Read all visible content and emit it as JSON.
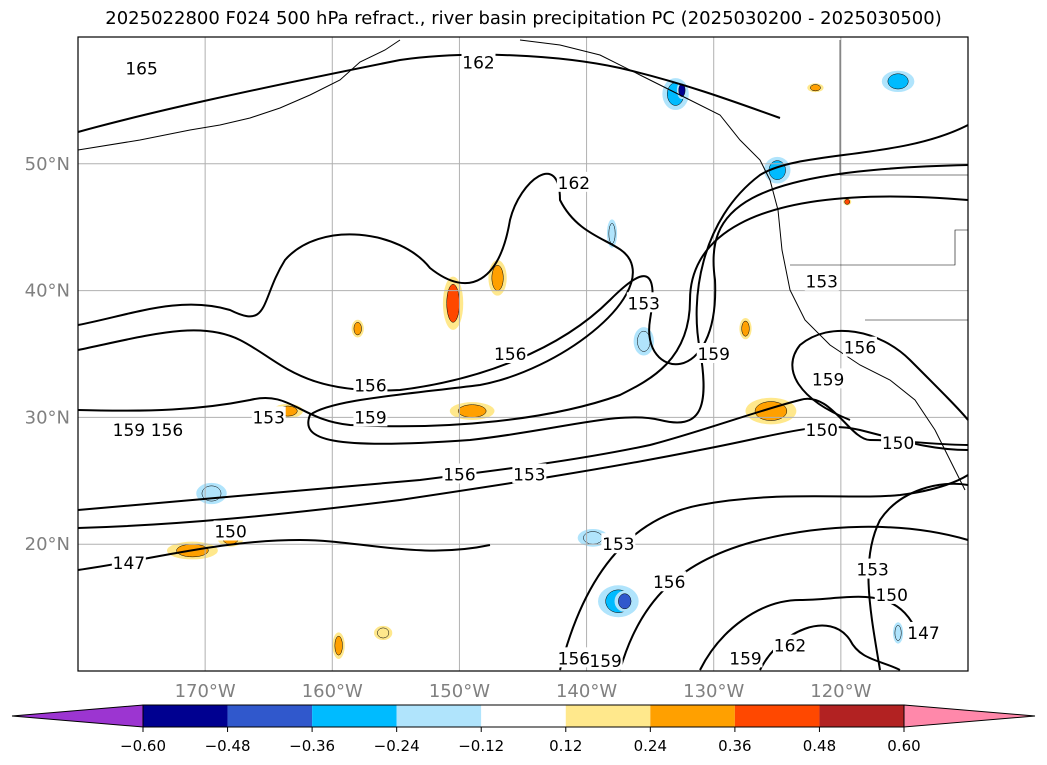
{
  "title": "2025022800 F024 500 hPa refract., river basin precipitation PC (2025030200 - 2025030500)",
  "map": {
    "lon_range": [
      -180,
      -110
    ],
    "lat_range": [
      10,
      60
    ],
    "lon_ticks": [
      {
        "value": -170,
        "label": "170°W"
      },
      {
        "value": -160,
        "label": "160°W"
      },
      {
        "value": -150,
        "label": "150°W"
      },
      {
        "value": -140,
        "label": "140°W"
      },
      {
        "value": -130,
        "label": "130°W"
      },
      {
        "value": -120,
        "label": "120°W"
      }
    ],
    "lat_ticks": [
      {
        "value": 20,
        "label": "20°N"
      },
      {
        "value": 30,
        "label": "30°N"
      },
      {
        "value": 40,
        "label": "40°N"
      },
      {
        "value": 50,
        "label": "50°N"
      }
    ],
    "grid": true,
    "tick_color": "#808080",
    "contour_labels": [
      {
        "text": "165",
        "lon": -175.0,
        "lat": 57.5
      },
      {
        "text": "162",
        "lon": -148.5,
        "lat": 58.0
      },
      {
        "text": "162",
        "lon": -141.0,
        "lat": 48.5
      },
      {
        "text": "156",
        "lon": -146.0,
        "lat": 35.0
      },
      {
        "text": "156",
        "lon": -157.0,
        "lat": 32.5
      },
      {
        "text": "159",
        "lon": -157.0,
        "lat": 30.0
      },
      {
        "text": "153",
        "lon": -165.0,
        "lat": 30.0
      },
      {
        "text": "156",
        "lon": -173.0,
        "lat": 29.0
      },
      {
        "text": "159",
        "lon": -176.0,
        "lat": 29.0
      },
      {
        "text": "156",
        "lon": -150.0,
        "lat": 25.5
      },
      {
        "text": "153",
        "lon": -144.5,
        "lat": 25.5
      },
      {
        "text": "150",
        "lon": -168.0,
        "lat": 21.0
      },
      {
        "text": "147",
        "lon": -176.0,
        "lat": 18.5
      },
      {
        "text": "153",
        "lon": -135.5,
        "lat": 39.0
      },
      {
        "text": "159",
        "lon": -130.0,
        "lat": 35.0
      },
      {
        "text": "153",
        "lon": -121.5,
        "lat": 40.7
      },
      {
        "text": "156",
        "lon": -118.5,
        "lat": 35.5
      },
      {
        "text": "159",
        "lon": -121.0,
        "lat": 33.0
      },
      {
        "text": "150",
        "lon": -121.5,
        "lat": 29.0
      },
      {
        "text": "150",
        "lon": -115.5,
        "lat": 28.0
      },
      {
        "text": "153",
        "lon": -137.5,
        "lat": 20.0
      },
      {
        "text": "156",
        "lon": -133.5,
        "lat": 17.0
      },
      {
        "text": "153",
        "lon": -117.5,
        "lat": 18.0
      },
      {
        "text": "150",
        "lon": -116.0,
        "lat": 16.0
      },
      {
        "text": "147",
        "lon": -113.5,
        "lat": 13.0
      },
      {
        "text": "162",
        "lon": -124.0,
        "lat": 12.0
      },
      {
        "text": "159",
        "lon": -127.5,
        "lat": 11.0
      },
      {
        "text": "159",
        "lon": -138.5,
        "lat": 10.8
      },
      {
        "text": "156",
        "lon": -141.0,
        "lat": 11.0
      }
    ],
    "shading": [
      {
        "lon": -150.5,
        "lat": 39.0,
        "w": 1.0,
        "h": 3.0,
        "level": "0.36"
      },
      {
        "lon": -149.0,
        "lat": 30.5,
        "w": 2.2,
        "h": 1.0,
        "level": "0.24"
      },
      {
        "lon": -147.0,
        "lat": 41.0,
        "w": 0.9,
        "h": 2.0,
        "level": "0.24"
      },
      {
        "lon": -125.5,
        "lat": 30.5,
        "w": 2.5,
        "h": 1.5,
        "level": "0.24"
      },
      {
        "lon": -127.5,
        "lat": 37.0,
        "w": 0.6,
        "h": 1.2,
        "level": "0.24"
      },
      {
        "lon": -163.5,
        "lat": 30.5,
        "w": 1.5,
        "h": 0.8,
        "level": "0.24"
      },
      {
        "lon": -171.0,
        "lat": 19.5,
        "w": 2.5,
        "h": 1.0,
        "level": "0.24"
      },
      {
        "lon": -168.0,
        "lat": 20.5,
        "w": 1.3,
        "h": 1.0,
        "level": "0.24"
      },
      {
        "lon": -176.5,
        "lat": 29.0,
        "w": 0.8,
        "h": 0.8,
        "level": "0.24"
      },
      {
        "lon": -159.5,
        "lat": 12.0,
        "w": 0.6,
        "h": 1.5,
        "level": "0.24"
      },
      {
        "lon": -156.0,
        "lat": 13.0,
        "w": 0.9,
        "h": 0.8,
        "level": "0.12"
      },
      {
        "lon": -158.0,
        "lat": 37.0,
        "w": 0.6,
        "h": 1.0,
        "level": "0.24"
      },
      {
        "lon": -133.0,
        "lat": 55.5,
        "w": 1.3,
        "h": 1.8,
        "level": "-0.36"
      },
      {
        "lon": -132.5,
        "lat": 55.8,
        "w": 0.5,
        "h": 1.0,
        "level": "-0.60"
      },
      {
        "lon": -115.5,
        "lat": 56.5,
        "w": 1.6,
        "h": 1.2,
        "level": "-0.36"
      },
      {
        "lon": -125.0,
        "lat": 49.5,
        "w": 1.3,
        "h": 1.5,
        "level": "-0.36"
      },
      {
        "lon": -137.5,
        "lat": 15.5,
        "w": 2.0,
        "h": 1.8,
        "level": "-0.36"
      },
      {
        "lon": -137.0,
        "lat": 15.5,
        "w": 1.0,
        "h": 1.2,
        "level": "-0.48"
      },
      {
        "lon": -139.5,
        "lat": 20.5,
        "w": 1.5,
        "h": 1.0,
        "level": "-0.24"
      },
      {
        "lon": -169.5,
        "lat": 24.0,
        "w": 1.5,
        "h": 1.2,
        "level": "-0.24"
      },
      {
        "lon": -135.5,
        "lat": 36.0,
        "w": 1.0,
        "h": 1.6,
        "level": "-0.24"
      },
      {
        "lon": -138.0,
        "lat": 44.5,
        "w": 0.5,
        "h": 1.6,
        "level": "-0.24"
      },
      {
        "lon": -115.5,
        "lat": 13.0,
        "w": 0.5,
        "h": 1.2,
        "level": "-0.24"
      },
      {
        "lon": -119.5,
        "lat": 47.0,
        "w": 0.4,
        "h": 0.4,
        "level": "0.36"
      },
      {
        "lon": -122.0,
        "lat": 56.0,
        "w": 0.8,
        "h": 0.5,
        "level": "0.24"
      }
    ]
  },
  "colorbar": {
    "colors": [
      "#9c35d1",
      "#000090",
      "#3058cc",
      "#00bbff",
      "#b0e4fc",
      "#ffffff",
      "#ffe88c",
      "#ffa000",
      "#ff4800",
      "#b22222",
      "#ff88aa"
    ],
    "tick_labels": [
      "−0.60",
      "−0.48",
      "−0.36",
      "−0.24",
      "−0.12",
      "0.12",
      "0.24",
      "0.36",
      "0.48",
      "0.60"
    ]
  }
}
